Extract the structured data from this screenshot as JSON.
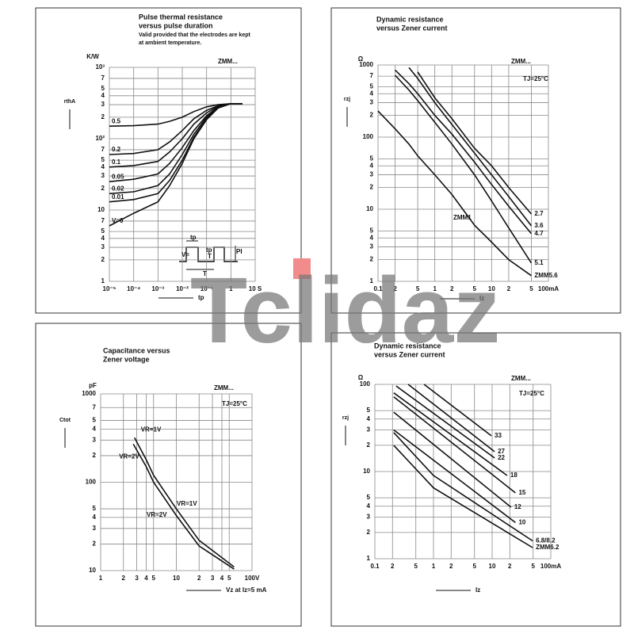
{
  "chart_data": [
    {
      "type": "line",
      "title": [
        "Pulse thermal resistance",
        "versus pulse duration"
      ],
      "subtitle": [
        "Valid provided that the electrodes are kept",
        "at ambient temperature."
      ],
      "y_unit": "K/W",
      "ylabel": "rthA",
      "xlabel": "tp",
      "log_x": true,
      "log_y": true,
      "grid": true,
      "xlim": [
        1e-05,
        10
      ],
      "ylim": [
        1,
        1000
      ],
      "xticks": [
        {
          "value": 1e-05,
          "label": "10⁻⁵"
        },
        {
          "value": 0.0001,
          "label": "10⁻⁴"
        },
        {
          "value": 0.001,
          "label": "10⁻³"
        },
        {
          "value": 0.01,
          "label": "10⁻²"
        },
        {
          "value": 0.1,
          "label": "10⁻¹"
        },
        1,
        {
          "value": 10,
          "label": "10 S"
        }
      ],
      "yticks": [
        1,
        2,
        3,
        4,
        5,
        7,
        10,
        {
          "value": 20,
          "label": "2"
        },
        {
          "value": 30,
          "label": "3"
        },
        {
          "value": 40,
          "label": "4"
        },
        {
          "value": 50,
          "label": "5"
        },
        {
          "value": 70,
          "label": "7"
        },
        {
          "value": 100,
          "label": "10²"
        },
        {
          "value": 200,
          "label": "2"
        },
        {
          "value": 300,
          "label": "3"
        },
        {
          "value": 400,
          "label": "4"
        },
        {
          "value": 500,
          "label": "5"
        },
        {
          "value": 700,
          "label": "7"
        },
        {
          "value": 1000,
          "label": "10³"
        }
      ],
      "series": [
        {
          "name": "0.5",
          "color": "#111",
          "x": [
            1e-05,
            0.0001,
            0.001,
            0.003,
            0.01,
            0.03,
            0.1,
            0.3,
            1,
            3
          ],
          "values": [
            150,
            152,
            160,
            175,
            200,
            240,
            280,
            300,
            310,
            310
          ]
        },
        {
          "name": "0.2",
          "color": "#111",
          "x": [
            1e-05,
            0.0001,
            0.001,
            0.003,
            0.01,
            0.03,
            0.1,
            0.3,
            1,
            3
          ],
          "values": [
            60,
            62,
            70,
            90,
            130,
            190,
            250,
            290,
            310,
            310
          ]
        },
        {
          "name": "0.1",
          "color": "#111",
          "x": [
            1e-05,
            0.0001,
            0.001,
            0.003,
            0.01,
            0.03,
            0.1,
            0.3,
            1,
            3
          ],
          "values": [
            40,
            42,
            48,
            65,
            100,
            160,
            230,
            285,
            310,
            310
          ]
        },
        {
          "name": "0.05",
          "color": "#111",
          "x": [
            1e-05,
            0.0001,
            0.001,
            0.003,
            0.01,
            0.03,
            0.1,
            0.3,
            1,
            3
          ],
          "values": [
            25,
            27,
            32,
            45,
            75,
            130,
            210,
            280,
            310,
            310
          ]
        },
        {
          "name": "0.02",
          "color": "#111",
          "x": [
            1e-05,
            0.0001,
            0.001,
            0.003,
            0.01,
            0.03,
            0.1,
            0.3,
            1,
            3
          ],
          "values": [
            17,
            18,
            22,
            32,
            60,
            115,
            200,
            275,
            310,
            310
          ]
        },
        {
          "name": "0.01",
          "color": "#111",
          "x": [
            1e-05,
            0.0001,
            0.001,
            0.003,
            0.01,
            0.03,
            0.1,
            0.3,
            1,
            3
          ],
          "values": [
            13,
            14,
            17,
            26,
            50,
            105,
            190,
            270,
            310,
            310
          ]
        },
        {
          "name": "V=0",
          "color": "#111",
          "x": [
            1e-05,
            0.0001,
            0.001,
            0.003,
            0.01,
            0.03,
            0.1,
            0.3,
            1,
            3
          ],
          "values": [
            6,
            9,
            13,
            22,
            45,
            100,
            185,
            270,
            310,
            310
          ]
        }
      ],
      "annotations": [
        "ZMM...",
        "tp",
        "V=",
        "tp",
        "T",
        "PI",
        "T"
      ]
    },
    {
      "type": "line",
      "title": [
        "Dynamic resistance",
        "versus Zener current"
      ],
      "y_unit": "Ω",
      "ylabel": "rzj",
      "xlabel": "Iz",
      "log_x": true,
      "log_y": true,
      "grid": true,
      "xlim": [
        0.1,
        100
      ],
      "ylim": [
        1,
        1000
      ],
      "xticks": [
        0.1,
        {
          "value": 0.2,
          "label": "2"
        },
        {
          "value": 0.5,
          "label": "5"
        },
        1,
        2,
        5,
        10,
        {
          "value": 20,
          "label": "2"
        },
        {
          "value": 50,
          "label": "5"
        },
        {
          "value": 100,
          "label": "100mA"
        }
      ],
      "yticks": [
        1,
        2,
        3,
        4,
        5,
        10,
        {
          "value": 20,
          "label": "2"
        },
        {
          "value": 30,
          "label": "3"
        },
        {
          "value": 40,
          "label": "4"
        },
        {
          "value": 50,
          "label": "5"
        },
        100,
        {
          "value": 200,
          "label": "2"
        },
        {
          "value": 300,
          "label": "3"
        },
        {
          "value": 400,
          "label": "4"
        },
        {
          "value": 500,
          "label": "5"
        },
        {
          "value": 700,
          "label": "7"
        },
        1000
      ],
      "series": [
        {
          "name": "2.7",
          "color": "#111",
          "x": [
            0.5,
            1,
            2,
            5,
            10,
            20,
            50
          ],
          "values": [
            800,
            350,
            180,
            70,
            40,
            20,
            8.6
          ]
        },
        {
          "name": "3.6",
          "color": "#111",
          "x": [
            0.35,
            0.5,
            1,
            2,
            5,
            10,
            20,
            50
          ],
          "values": [
            920,
            650,
            300,
            150,
            60,
            30,
            15,
            5.9
          ]
        },
        {
          "name": "4.7",
          "color": "#111",
          "x": [
            0.2,
            0.35,
            0.5,
            1,
            2,
            5,
            10,
            20,
            50
          ],
          "values": [
            850,
            550,
            400,
            200,
            110,
            45,
            22,
            11,
            4.6
          ]
        },
        {
          "name": "5.1",
          "color": "#111",
          "x": [
            0.2,
            0.35,
            0.5,
            1,
            2,
            5,
            10,
            20,
            50
          ],
          "values": [
            720,
            450,
            320,
            160,
            80,
            30,
            13,
            5.5,
            1.8
          ]
        },
        {
          "name": "ZMM5.6",
          "color": "#111",
          "x": [
            0.1,
            0.2,
            0.35,
            0.5,
            1,
            2,
            5,
            10,
            20,
            50
          ],
          "values": [
            230,
            130,
            80,
            55,
            30,
            16,
            6,
            3.5,
            2,
            1.2
          ]
        }
      ],
      "annotations": [
        "ZMM...",
        "TJ=25°C",
        "ZMM1"
      ]
    },
    {
      "type": "line",
      "title": [
        "Capacitance versus",
        "Zener voltage"
      ],
      "y_unit": "pF",
      "ylabel": "Ctot",
      "xlabel": "Vz at Iz=5 mA",
      "log_x": true,
      "log_y": true,
      "grid": true,
      "xlim": [
        1,
        100
      ],
      "ylim": [
        10,
        1000
      ],
      "xticks": [
        1,
        2,
        3,
        4,
        5,
        10,
        {
          "value": 20,
          "label": "2"
        },
        {
          "value": 30,
          "label": "3"
        },
        {
          "value": 40,
          "label": "4"
        },
        {
          "value": 50,
          "label": "5"
        },
        {
          "value": 100,
          "label": "100V"
        }
      ],
      "yticks": [
        10,
        {
          "value": 20,
          "label": "2"
        },
        {
          "value": 30,
          "label": "3"
        },
        {
          "value": 40,
          "label": "4"
        },
        {
          "value": 50,
          "label": "5"
        },
        100,
        {
          "value": 200,
          "label": "2"
        },
        {
          "value": 300,
          "label": "3"
        },
        {
          "value": 400,
          "label": "4"
        },
        {
          "value": 500,
          "label": "5"
        },
        {
          "value": 700,
          "label": "7"
        },
        1000
      ],
      "series": [
        {
          "name": "VR=1V",
          "color": "#111",
          "x": [
            2.8,
            4,
            5,
            10,
            20,
            58
          ],
          "values": [
            320,
            180,
            120,
            50,
            22,
            11
          ]
        },
        {
          "name": "VR=2V",
          "color": "#111",
          "x": [
            2.7,
            4,
            5,
            10,
            20,
            58
          ],
          "values": [
            270,
            150,
            100,
            42,
            19,
            10.4
          ]
        }
      ],
      "annotations": [
        "ZMM...",
        "TJ=25°C",
        "VR=1V",
        "VR=2V"
      ]
    },
    {
      "type": "line",
      "title": [
        "Dynamic resistance",
        "versus Zener current"
      ],
      "y_unit": "Ω",
      "ylabel": "rzj",
      "xlabel": "Iz",
      "log_x": true,
      "log_y": true,
      "grid": true,
      "xlim": [
        0.1,
        100
      ],
      "ylim": [
        1,
        100
      ],
      "xticks": [
        0.1,
        {
          "value": 0.2,
          "label": "2"
        },
        {
          "value": 0.5,
          "label": "5"
        },
        1,
        2,
        5,
        10,
        {
          "value": 20,
          "label": "2"
        },
        {
          "value": 50,
          "label": "5"
        },
        {
          "value": 100,
          "label": "100mA"
        }
      ],
      "yticks": [
        1,
        2,
        3,
        4,
        5,
        10,
        {
          "value": 20,
          "label": "2"
        },
        {
          "value": 30,
          "label": "3"
        },
        {
          "value": 40,
          "label": "4"
        },
        {
          "value": 50,
          "label": "5"
        },
        100
      ],
      "series": [
        {
          "name": "33",
          "color": "#111",
          "x": [
            0.69,
            9.7
          ],
          "values": [
            100,
            25.7
          ]
        },
        {
          "name": "27",
          "color": "#111",
          "x": [
            0.37,
            11
          ],
          "values": [
            100,
            16.9
          ]
        },
        {
          "name": "22",
          "color": "#111",
          "x": [
            0.23,
            11
          ],
          "values": [
            96,
            14.3
          ]
        },
        {
          "name": "18",
          "color": "#111",
          "x": [
            0.21,
            18
          ],
          "values": [
            80,
            9
          ]
        },
        {
          "name": "15",
          "color": "#111",
          "x": [
            0.21,
            25
          ],
          "values": [
            72,
            5.7
          ]
        },
        {
          "name": "12",
          "color": "#111",
          "x": [
            0.21,
            21
          ],
          "values": [
            48,
            3.9
          ]
        },
        {
          "name": "10",
          "color": "#111",
          "x": [
            0.21,
            25
          ],
          "values": [
            30,
            2.6
          ]
        },
        {
          "name": "6.8/8.2",
          "color": "#111",
          "x": [
            0.21,
            1,
            49
          ],
          "values": [
            28,
            9,
            1.6
          ]
        },
        {
          "name": "ZMM6.2",
          "color": "#111",
          "x": [
            0.21,
            1,
            49
          ],
          "values": [
            20,
            6.5,
            1.34
          ]
        }
      ],
      "annotations": [
        "ZMM...",
        "TJ=25°C"
      ]
    }
  ],
  "watermark": "Tclidaz"
}
